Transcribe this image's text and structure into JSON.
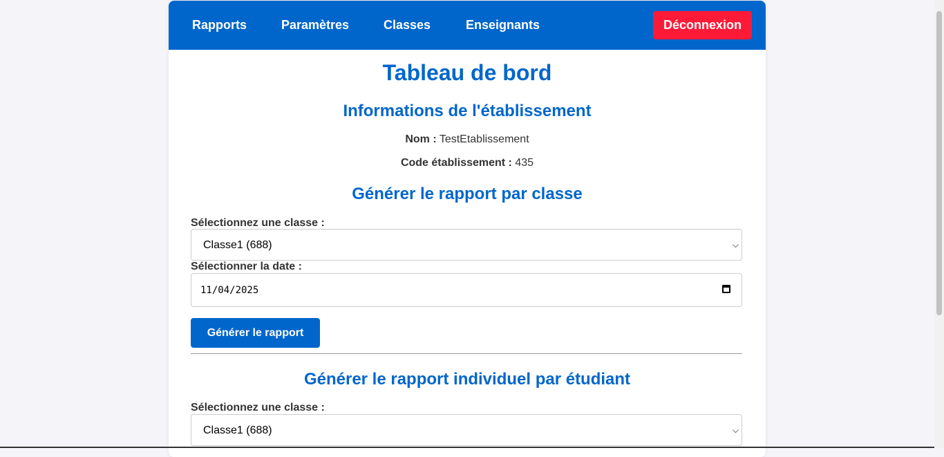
{
  "nav": {
    "items": [
      "Rapports",
      "Paramètres",
      "Classes",
      "Enseignants"
    ],
    "logout": "Déconnexion"
  },
  "colors": {
    "primary": "#0066cc",
    "danger": "#ff1a38",
    "background": "#f4f4f9"
  },
  "title": "Tableau de bord",
  "establishment": {
    "heading": "Informations de l'établissement",
    "name_label": "Nom :",
    "name_value": "TestEtablissement",
    "code_label": "Code établissement :",
    "code_value": "435"
  },
  "class_report": {
    "heading": "Générer le rapport par classe",
    "class_label": "Sélectionnez une classe :",
    "class_value": "Classe1 (688)",
    "date_label": "Sélectionner la date :",
    "date_value": "11/04/2025",
    "button": "Générer le rapport"
  },
  "student_report": {
    "heading": "Générer le rapport individuel par étudiant",
    "class_label": "Sélectionnez une classe :",
    "class_value": "Classe1 (688)"
  }
}
